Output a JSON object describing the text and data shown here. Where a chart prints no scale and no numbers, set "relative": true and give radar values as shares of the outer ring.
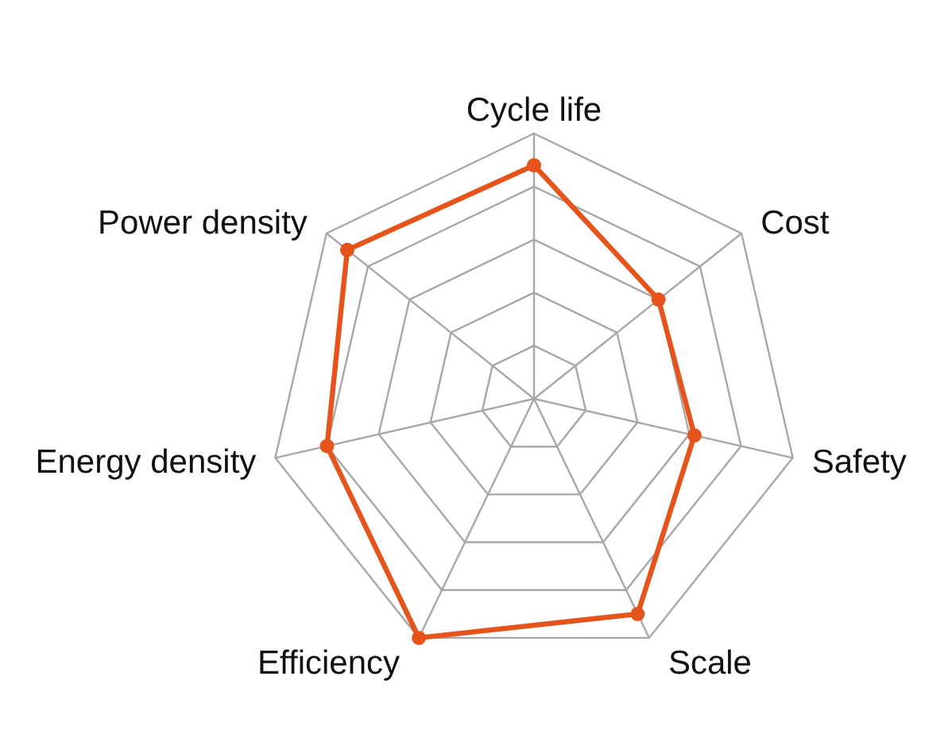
{
  "chart_data": {
    "type": "radar",
    "categories": [
      "Cycle life",
      "Cost",
      "Safety",
      "Scale",
      "Efficiency",
      "Energy density",
      "Power density"
    ],
    "relative": true,
    "series": [
      {
        "color": "#e5541b",
        "values": [
          0.88,
          0.6,
          0.62,
          0.9,
          1,
          0.8,
          0.9
        ]
      }
    ],
    "grid": true,
    "marker": "circle",
    "line_style": "solid"
  }
}
